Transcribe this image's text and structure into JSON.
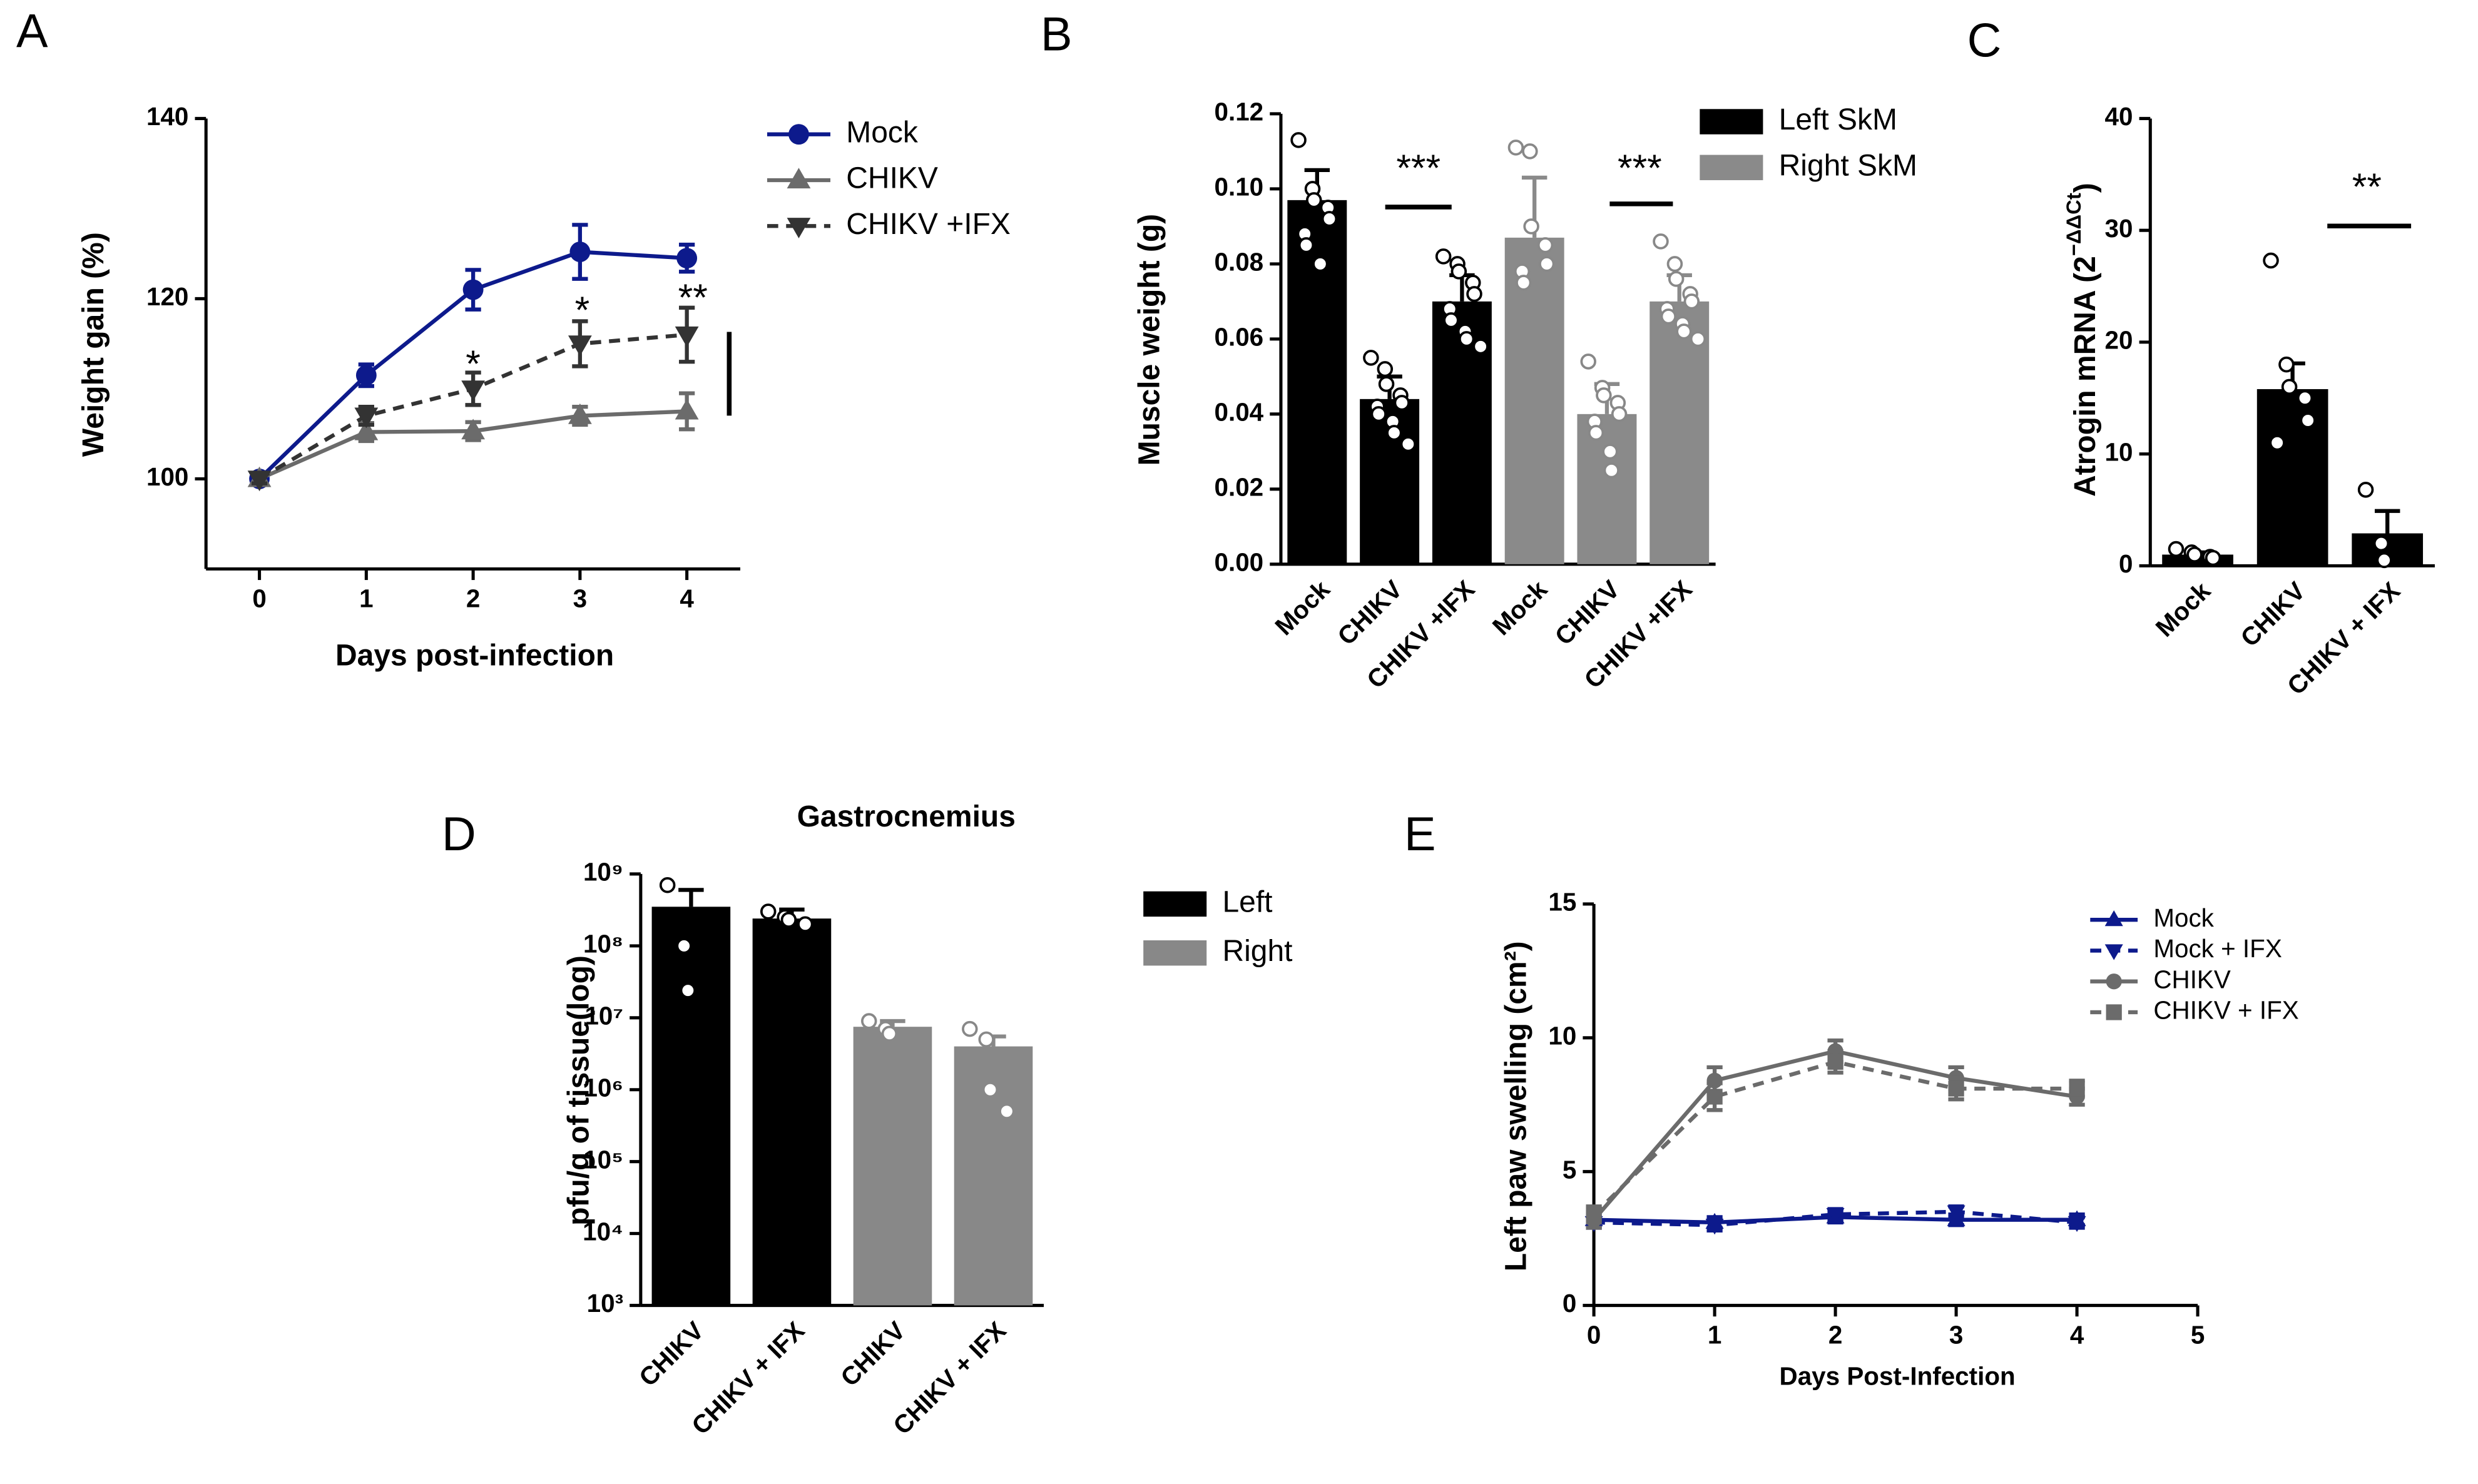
{
  "chart_data": [
    {
      "type": "line",
      "panel_label": "A",
      "x_label": "Days post-infection",
      "y_label": "Weight gain (%)",
      "x": [
        0,
        1,
        2,
        3,
        4
      ],
      "xlim": [
        -0.5,
        4.5
      ],
      "xticks": [
        0,
        1,
        2,
        3,
        4
      ],
      "ylim": [
        90,
        140
      ],
      "yticks": [
        100,
        120,
        140
      ],
      "series": [
        {
          "name": "Mock",
          "color": "#0d1a8c",
          "marker": "circle",
          "dash": false,
          "values": [
            100,
            111.5,
            121,
            125.2,
            124.5
          ],
          "errors": [
            0.5,
            1.2,
            2.2,
            3,
            1.5
          ]
        },
        {
          "name": "CHIKV",
          "color": "#6b6b6b",
          "marker": "triangle-up",
          "dash": false,
          "values": [
            100,
            105.2,
            105.3,
            107,
            107.5
          ],
          "errors": [
            0.5,
            1,
            1,
            1,
            2
          ]
        },
        {
          "name": "CHIKV +IFX",
          "color": "#333333",
          "marker": "triangle-down",
          "dash": true,
          "values": [
            100,
            107,
            110,
            115,
            116
          ],
          "errors": [
            0.5,
            1,
            1.8,
            2.5,
            3
          ]
        }
      ],
      "annotations": [
        "*",
        "*",
        "**"
      ]
    },
    {
      "type": "bar",
      "panel_label": "B",
      "y_label": "Muscle weight (g)",
      "categories": [
        "Mock",
        "CHIKV",
        "CHIKV +IFX",
        "Mock",
        "CHIKV",
        "CHIKV +IFX"
      ],
      "ylim": [
        0,
        0.12
      ],
      "yticks": [
        {
          "value": 0,
          "label": "0.00"
        },
        {
          "value": 0.02,
          "label": "0.02"
        },
        {
          "value": 0.04,
          "label": "0.04"
        },
        {
          "value": 0.06,
          "label": "0.06"
        },
        {
          "value": 0.08,
          "label": "0.08"
        },
        {
          "value": 0.1,
          "label": "0.10"
        },
        {
          "value": 0.12,
          "label": "0.12"
        }
      ],
      "series": [
        {
          "name": "Left SkM",
          "color": "#000000",
          "values": [
            0.097,
            0.044,
            0.07,
            null,
            null,
            null
          ],
          "errors": [
            0.008,
            0.006,
            0.007,
            null,
            null,
            null
          ],
          "points": [
            [
              0.113,
              0.1,
              0.097,
              0.095,
              0.092,
              0.088,
              0.085,
              0.08
            ],
            [
              0.055,
              0.052,
              0.048,
              0.045,
              0.043,
              0.042,
              0.04,
              0.038,
              0.035,
              0.032
            ],
            [
              0.082,
              0.08,
              0.078,
              0.075,
              0.072,
              0.068,
              0.065,
              0.062,
              0.06,
              0.058
            ],
            null,
            null,
            null
          ]
        },
        {
          "name": "Right SkM",
          "color": "#8a8a8a",
          "values": [
            null,
            null,
            null,
            0.087,
            0.04,
            0.07
          ],
          "errors": [
            null,
            null,
            null,
            0.016,
            0.008,
            0.007
          ],
          "points": [
            null,
            null,
            null,
            [
              0.111,
              0.11,
              0.09,
              0.085,
              0.08,
              0.078,
              0.075
            ],
            [
              0.054,
              0.047,
              0.045,
              0.043,
              0.04,
              0.038,
              0.035,
              0.03,
              0.025
            ],
            [
              0.086,
              0.08,
              0.076,
              0.072,
              0.07,
              0.068,
              0.066,
              0.064,
              0.062,
              0.06
            ]
          ]
        }
      ],
      "annotations": [
        "***",
        "***"
      ]
    },
    {
      "type": "bar",
      "panel_label": "C",
      "y_label": [
        "Atrogin mRNA (2",
        "−ΔΔCt",
        ")"
      ],
      "categories": [
        "Mock",
        "CHIKV",
        "CHIKV + IFX"
      ],
      "ylim": [
        0,
        40
      ],
      "yticks": [
        0,
        10,
        20,
        30,
        40
      ],
      "series": [
        {
          "name": null,
          "color": "#000000",
          "values": [
            1,
            15.8,
            2.9
          ],
          "errors": [
            0.2,
            2.3,
            2
          ],
          "points": [
            [
              1.5,
              1.2,
              1,
              0.8,
              0.7
            ],
            [
              27.3,
              18,
              16,
              15,
              13,
              11
            ],
            [
              6.8,
              2,
              0.5
            ]
          ]
        }
      ],
      "annotations": [
        "**"
      ]
    },
    {
      "type": "bar",
      "panel_label": "D",
      "title": "Gastrocnemius",
      "y_label": "pfu/g of tissue(log)",
      "log_y": true,
      "categories": [
        "CHIKV",
        "CHIKV + IFX",
        "CHIKV",
        "CHIKV + IFX"
      ],
      "ylim": [
        1000,
        1000000000
      ],
      "yticks": [
        {
          "value": 1000,
          "label": "10³"
        },
        {
          "value": 10000,
          "label": "10⁴"
        },
        {
          "value": 100000,
          "label": "10⁵"
        },
        {
          "value": 1000000,
          "label": "10⁶"
        },
        {
          "value": 10000000,
          "label": "10⁷"
        },
        {
          "value": 100000000,
          "label": "10⁸"
        },
        {
          "value": 1000000000,
          "label": "10⁹"
        }
      ],
      "series": [
        {
          "name": "Left",
          "color": "#000000",
          "values": [
            350000000,
            240000000,
            null,
            null
          ],
          "errors": [
            250000000,
            80000000,
            null,
            null
          ],
          "points": [
            [
              700000000,
              100000000,
              24000000
            ],
            [
              300000000,
              250000000,
              230000000,
              200000000
            ],
            null,
            null
          ]
        },
        {
          "name": "Right",
          "color": "#888888",
          "values": [
            null,
            null,
            7500000,
            4000000
          ],
          "errors": [
            null,
            null,
            1500000,
            1500000
          ],
          "points": [
            null,
            null,
            [
              9000000,
              7000000,
              6000000
            ],
            [
              7000000,
              5000000,
              1000000,
              500000
            ]
          ]
        }
      ]
    },
    {
      "type": "line",
      "panel_label": "E",
      "x_label": "Days Post-Infection",
      "y_label": "Left paw swelling  (cm²)",
      "x": [
        0,
        1,
        2,
        3,
        4
      ],
      "xlim": [
        0,
        5
      ],
      "xticks": [
        0,
        1,
        2,
        3,
        4,
        5
      ],
      "ylim": [
        0,
        15
      ],
      "yticks": [
        0,
        5,
        10,
        15
      ],
      "series": [
        {
          "name": "Mock",
          "color": "#0d1a8c",
          "marker": "triangle-up",
          "dash": false,
          "values": [
            3.2,
            3.1,
            3.3,
            3.2,
            3.2
          ],
          "errors": [
            0.2,
            0.2,
            0.2,
            0.2,
            0.2
          ]
        },
        {
          "name": "Mock + IFX",
          "color": "#0d1a8c",
          "marker": "triangle-down",
          "dash": true,
          "values": [
            3.1,
            3.0,
            3.4,
            3.5,
            3.1
          ],
          "errors": [
            0.2,
            0.2,
            0.2,
            0.2,
            0.2
          ]
        },
        {
          "name": "CHIKV",
          "color": "#6b6b6b",
          "marker": "circle",
          "dash": false,
          "values": [
            3.2,
            8.4,
            9.5,
            8.5,
            7.8
          ],
          "errors": [
            0.3,
            0.5,
            0.4,
            0.4,
            0.3
          ]
        },
        {
          "name": "CHIKV + IFX",
          "color": "#6b6b6b",
          "marker": "square",
          "dash": true,
          "values": [
            3.4,
            7.8,
            9.1,
            8.1,
            8.1
          ],
          "errors": [
            0.3,
            0.5,
            0.4,
            0.4,
            0.3
          ]
        }
      ]
    }
  ]
}
